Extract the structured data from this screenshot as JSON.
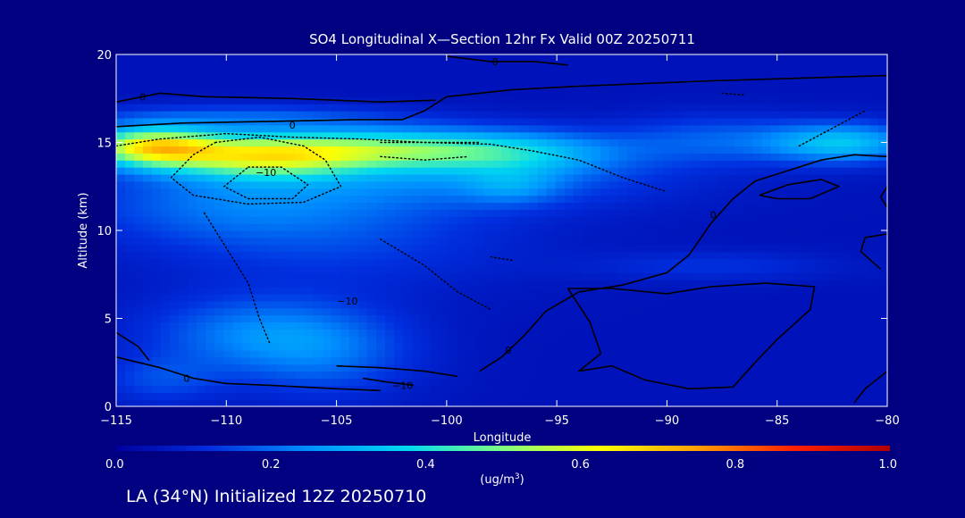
{
  "colors": {
    "background": "#000080",
    "plot_background": "#0a1d9e",
    "text": "#ffffff",
    "contour": "#000000"
  },
  "footer": {
    "location_label": "LA (34°N) Initialized 12Z 20250710"
  },
  "chart_data": {
    "type": "heatmap",
    "title": "SO4 Longitudinal X—Section 12hr  Fx Valid 00Z 20250711",
    "xlabel": "Longitude",
    "ylabel": "Altitude (km)",
    "xlim": [
      -115,
      -80
    ],
    "ylim": [
      0,
      20
    ],
    "x_ticks": [
      -115,
      -110,
      -105,
      -100,
      -95,
      -90,
      -85,
      -80
    ],
    "x_tick_labels": [
      "−115",
      "−110",
      "−105",
      "−100",
      "−95",
      "−90",
      "−85",
      "−80"
    ],
    "y_ticks": [
      0,
      5,
      10,
      15,
      20
    ],
    "y_tick_labels": [
      "0",
      "5",
      "10",
      "15",
      "20"
    ],
    "colorbar": {
      "ticks": [
        0.0,
        0.2,
        0.4,
        0.6,
        0.8,
        1.0
      ],
      "tick_labels": [
        "0.0",
        "0.2",
        "0.4",
        "0.6",
        "0.8",
        "1.0"
      ],
      "unit_prefix": "(ug/m",
      "unit_exp": "3",
      "unit_suffix": ")",
      "stops": [
        "#0000a0",
        "#0030e0",
        "#0090ff",
        "#00d8f0",
        "#80ff80",
        "#ffff00",
        "#ffa000",
        "#ff2000",
        "#b00000"
      ]
    },
    "base_value": 0.05,
    "blobs": [
      {
        "lon": -113.5,
        "alt": 14.8,
        "sx": 2.2,
        "sy": 0.8,
        "v": 0.52
      },
      {
        "lon": -108.5,
        "alt": 14.3,
        "sx": 3.2,
        "sy": 0.9,
        "v": 0.45
      },
      {
        "lon": -103.0,
        "alt": 14.7,
        "sx": 3.5,
        "sy": 0.8,
        "v": 0.3
      },
      {
        "lon": -97.0,
        "alt": 14.5,
        "sx": 3.5,
        "sy": 0.9,
        "v": 0.24
      },
      {
        "lon": -88.0,
        "alt": 15.2,
        "sx": 3.0,
        "sy": 1.0,
        "v": 0.12
      },
      {
        "lon": -82.0,
        "alt": 15.0,
        "sx": 2.5,
        "sy": 0.8,
        "v": 0.28
      },
      {
        "lon": -109.0,
        "alt": 16.5,
        "sx": 5.0,
        "sy": 0.5,
        "v": 0.12
      },
      {
        "lon": -100.0,
        "alt": 13.0,
        "sx": 7.0,
        "sy": 1.3,
        "v": 0.14
      },
      {
        "lon": -110.0,
        "alt": 11.5,
        "sx": 5.0,
        "sy": 1.5,
        "v": 0.12
      },
      {
        "lon": -105.0,
        "alt": 9.5,
        "sx": 6.0,
        "sy": 2.0,
        "v": 0.09
      },
      {
        "lon": -109.0,
        "alt": 4.2,
        "sx": 3.5,
        "sy": 1.5,
        "v": 0.15
      },
      {
        "lon": -105.5,
        "alt": 3.0,
        "sx": 3.0,
        "sy": 1.8,
        "v": 0.13
      },
      {
        "lon": -113.0,
        "alt": 1.5,
        "sx": 2.0,
        "sy": 1.0,
        "v": 0.1
      },
      {
        "lon": -88.0,
        "alt": 8.0,
        "sx": 4.0,
        "sy": 0.6,
        "v": 0.07
      },
      {
        "lon": -97.0,
        "alt": 12.5,
        "sx": 1.5,
        "sy": 0.7,
        "v": 0.1
      }
    ],
    "contour_labels": [
      {
        "lon": -113.8,
        "alt": 17.6,
        "text": "0"
      },
      {
        "lon": -107.0,
        "alt": 16.0,
        "text": "0"
      },
      {
        "lon": -97.8,
        "alt": 19.6,
        "text": "0"
      },
      {
        "lon": -108.2,
        "alt": 13.3,
        "text": "−10"
      },
      {
        "lon": -104.5,
        "alt": 6.0,
        "text": "−10"
      },
      {
        "lon": -102.0,
        "alt": 1.2,
        "text": "−10"
      },
      {
        "lon": -111.8,
        "alt": 1.6,
        "text": "0"
      },
      {
        "lon": -97.2,
        "alt": 3.2,
        "text": "0"
      },
      {
        "lon": -87.9,
        "alt": 10.9,
        "text": "0"
      }
    ],
    "contours": [
      {
        "style": "solid",
        "points": [
          [
            -115,
            15.9
          ],
          [
            -112,
            16.1
          ],
          [
            -108,
            16.2
          ],
          [
            -104,
            16.3
          ],
          [
            -102,
            16.3
          ],
          [
            -101,
            16.8
          ],
          [
            -100,
            17.6
          ],
          [
            -97,
            18.0
          ],
          [
            -94,
            18.2
          ],
          [
            -88,
            18.5
          ],
          [
            -80,
            18.8
          ]
        ]
      },
      {
        "style": "solid",
        "points": [
          [
            -115,
            17.3
          ],
          [
            -113,
            17.8
          ],
          [
            -111,
            17.6
          ],
          [
            -107,
            17.5
          ],
          [
            -103,
            17.3
          ],
          [
            -100.5,
            17.4
          ]
        ]
      },
      {
        "style": "solid",
        "points": [
          [
            -100,
            19.9
          ],
          [
            -98,
            19.6
          ],
          [
            -96,
            19.6
          ],
          [
            -94.5,
            19.4
          ]
        ]
      },
      {
        "style": "solid",
        "points": [
          [
            -115,
            2.8
          ],
          [
            -113,
            2.2
          ],
          [
            -111.5,
            1.6
          ],
          [
            -110,
            1.3
          ],
          [
            -108,
            1.2
          ],
          [
            -105,
            1.0
          ],
          [
            -103,
            0.9
          ]
        ]
      },
      {
        "style": "solid",
        "points": [
          [
            -115,
            4.2
          ],
          [
            -114,
            3.4
          ],
          [
            -113.5,
            2.6
          ]
        ]
      },
      {
        "style": "solid",
        "points": [
          [
            -105,
            2.3
          ],
          [
            -103,
            2.2
          ],
          [
            -101,
            2.0
          ],
          [
            -99.5,
            1.7
          ]
        ]
      },
      {
        "style": "solid",
        "points": [
          [
            -103.8,
            1.6
          ],
          [
            -102.8,
            1.4
          ],
          [
            -101.5,
            1.2
          ]
        ]
      },
      {
        "style": "solid",
        "points": [
          [
            -98.5,
            2.0
          ],
          [
            -97.5,
            2.8
          ],
          [
            -96.5,
            4.0
          ],
          [
            -95.5,
            5.4
          ],
          [
            -94,
            6.5
          ],
          [
            -92,
            6.9
          ],
          [
            -90,
            7.6
          ],
          [
            -89,
            8.6
          ],
          [
            -88,
            10.4
          ],
          [
            -87,
            11.8
          ],
          [
            -86,
            12.8
          ],
          [
            -84.5,
            13.4
          ],
          [
            -83,
            14.0
          ],
          [
            -81.5,
            14.3
          ],
          [
            -80,
            14.2
          ]
        ]
      },
      {
        "style": "solid",
        "points": [
          [
            -94.5,
            6.7
          ],
          [
            -93.5,
            4.8
          ],
          [
            -93,
            3.0
          ],
          [
            -94,
            2.0
          ],
          [
            -92.5,
            2.3
          ],
          [
            -91,
            1.5
          ],
          [
            -89,
            1.0
          ],
          [
            -87,
            1.1
          ],
          [
            -86,
            2.5
          ],
          [
            -85,
            3.8
          ],
          [
            -83.5,
            5.5
          ],
          [
            -83.3,
            6.8
          ],
          [
            -85.5,
            7.0
          ],
          [
            -88,
            6.8
          ],
          [
            -90,
            6.4
          ],
          [
            -92.5,
            6.7
          ],
          [
            -94.5,
            6.7
          ]
        ]
      },
      {
        "style": "solid",
        "points": [
          [
            -85.8,
            12.0
          ],
          [
            -84.5,
            12.6
          ],
          [
            -83,
            12.9
          ],
          [
            -82.2,
            12.5
          ],
          [
            -83.5,
            11.8
          ],
          [
            -85,
            11.8
          ],
          [
            -85.8,
            12.0
          ]
        ]
      },
      {
        "style": "solid",
        "points": [
          [
            -80,
            9.8
          ],
          [
            -81,
            9.6
          ],
          [
            -81.2,
            8.8
          ],
          [
            -80.3,
            7.8
          ]
        ]
      },
      {
        "style": "solid",
        "points": [
          [
            -80,
            2.0
          ],
          [
            -81,
            1.0
          ],
          [
            -81.5,
            0.2
          ]
        ]
      },
      {
        "style": "solid",
        "points": [
          [
            -80,
            12.5
          ],
          [
            -80.3,
            11.9
          ],
          [
            -80,
            11.3
          ]
        ]
      },
      {
        "style": "dotted",
        "points": [
          [
            -115,
            14.8
          ],
          [
            -113,
            15.2
          ],
          [
            -110,
            15.5
          ],
          [
            -107,
            15.3
          ],
          [
            -104,
            15.2
          ],
          [
            -101,
            15.0
          ],
          [
            -98,
            14.9
          ],
          [
            -96,
            14.5
          ],
          [
            -94,
            14.0
          ],
          [
            -92,
            13.0
          ],
          [
            -90,
            12.2
          ]
        ]
      },
      {
        "style": "dotted",
        "points": [
          [
            -110.5,
            15.0
          ],
          [
            -108.5,
            15.3
          ],
          [
            -106.5,
            14.8
          ],
          [
            -105.5,
            14.0
          ],
          [
            -104.8,
            12.5
          ],
          [
            -106.5,
            11.6
          ],
          [
            -109,
            11.5
          ],
          [
            -111.5,
            12.0
          ],
          [
            -112.5,
            13.0
          ],
          [
            -111.5,
            14.3
          ],
          [
            -110.5,
            15.0
          ]
        ]
      },
      {
        "style": "dotted",
        "points": [
          [
            -109,
            13.6
          ],
          [
            -107.5,
            13.6
          ],
          [
            -106.3,
            12.6
          ],
          [
            -107,
            11.8
          ],
          [
            -109,
            11.8
          ],
          [
            -110.1,
            12.5
          ],
          [
            -109,
            13.6
          ]
        ]
      },
      {
        "style": "dotted",
        "points": [
          [
            -103,
            15.0
          ],
          [
            -100.5,
            15.0
          ],
          [
            -98.5,
            15.0
          ]
        ]
      },
      {
        "style": "dotted",
        "points": [
          [
            -103,
            14.2
          ],
          [
            -101,
            14.0
          ],
          [
            -99,
            14.2
          ]
        ]
      },
      {
        "style": "dotted",
        "points": [
          [
            -111,
            11.0
          ],
          [
            -110,
            9.0
          ],
          [
            -109,
            7.0
          ],
          [
            -108.5,
            5.0
          ],
          [
            -108,
            3.5
          ]
        ]
      },
      {
        "style": "dotted",
        "points": [
          [
            -103,
            9.5
          ],
          [
            -101,
            8.0
          ],
          [
            -99.5,
            6.5
          ],
          [
            -98,
            5.5
          ]
        ]
      },
      {
        "style": "dotted",
        "points": [
          [
            -84,
            14.8
          ],
          [
            -82.5,
            15.8
          ],
          [
            -81,
            16.8
          ]
        ]
      },
      {
        "style": "dotted",
        "points": [
          [
            -87.5,
            17.8
          ],
          [
            -86.5,
            17.7
          ]
        ]
      },
      {
        "style": "dotted",
        "points": [
          [
            -98,
            8.5
          ],
          [
            -97,
            8.3
          ]
        ]
      }
    ]
  }
}
